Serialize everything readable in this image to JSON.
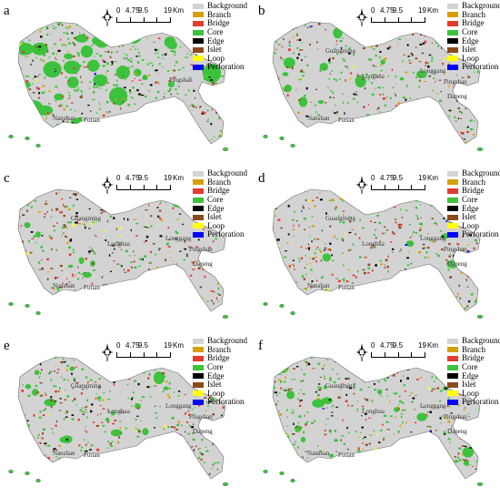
{
  "legend": [
    {
      "label": "Background",
      "color": "#d3d3d3"
    },
    {
      "label": "Branch",
      "color": "#d7a000"
    },
    {
      "label": "Bridge",
      "color": "#e23b2f"
    },
    {
      "label": "Core",
      "color": "#3cc23c"
    },
    {
      "label": "Edge",
      "color": "#000000"
    },
    {
      "label": "Islet",
      "color": "#8b4a1c"
    },
    {
      "label": "Loop",
      "color": "#ffff00"
    },
    {
      "label": "Perforation",
      "color": "#0000ff"
    }
  ],
  "scale_bar": {
    "ticks": [
      "0",
      "4.75",
      "9.5",
      "19"
    ],
    "unit": "Km"
  },
  "panels": [
    {
      "label": "a",
      "places": [
        "Nanshan",
        "Futian",
        "Pingshan"
      ]
    },
    {
      "label": "b",
      "places": [
        "Guangming",
        "Longhua",
        "Longgang",
        "Pingshan",
        "Nanshan",
        "Futian",
        "Dapeng"
      ]
    },
    {
      "label": "c",
      "places": [
        "Guangming",
        "Longhua",
        "Longgang",
        "Pingshan",
        "Nanshan",
        "Futian",
        "Dapeng"
      ]
    },
    {
      "label": "d",
      "places": [
        "Guangming",
        "Longhua",
        "Longgang",
        "Pingshan",
        "Nanshan",
        "Futian",
        "Dapeng"
      ]
    },
    {
      "label": "e",
      "places": [
        "Guangming",
        "Longhua",
        "Longgang",
        "Pingshan",
        "Nanshan",
        "Futian",
        "Dapeng"
      ]
    },
    {
      "label": "f",
      "places": [
        "Guangming",
        "Longhua",
        "Longgang",
        "Pingshan",
        "Nanshan",
        "Futian",
        "Dapeng"
      ]
    }
  ]
}
